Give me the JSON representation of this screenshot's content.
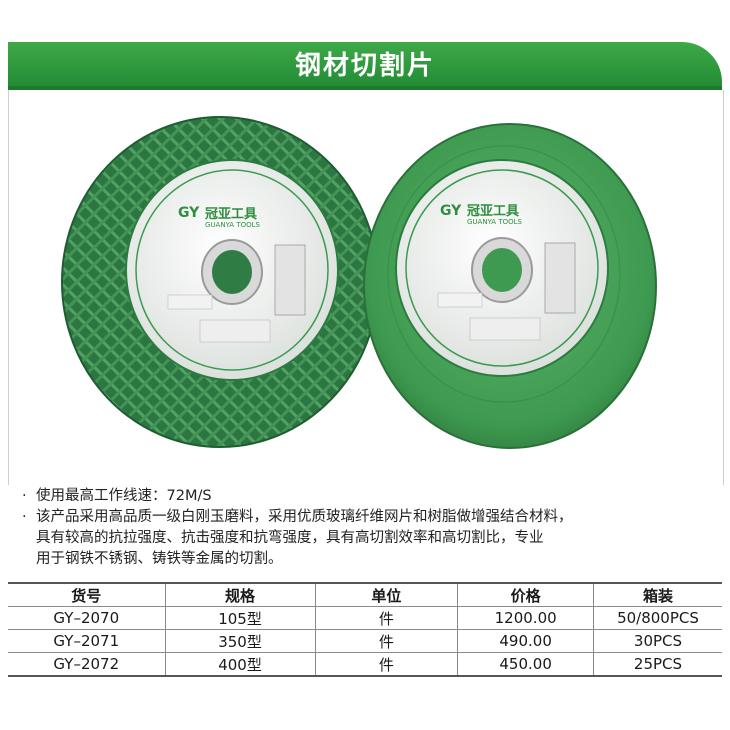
{
  "header": {
    "title": "钢材切割片"
  },
  "product_label": {
    "brand_logo": "GY",
    "brand_cn": "冠亚工具",
    "brand_en": "GUANYA TOOLS"
  },
  "description": {
    "lines": [
      "使用最高工作线速：72M/S",
      "该产品采用高品质一级白刚玉磨料，采用优质玻璃纤维网片和树脂做增强结合材料，",
      "具有较高的抗拉强度、抗击强度和抗弯强度，具有高切割效率和高切割比，专业",
      "用于钢铁不锈钢、铸铁等金属的切割。"
    ],
    "bullet": "·"
  },
  "table": {
    "headers": [
      "货号",
      "规格",
      "单位",
      "价格",
      "箱装"
    ],
    "rows": [
      [
        "GY–2070",
        "105型",
        "件",
        "1200.00",
        "50/800PCS"
      ],
      [
        "GY–2071",
        "350型",
        "件",
        "490.00",
        "30PCS"
      ],
      [
        "GY–2072",
        "400型",
        "件",
        "450.00",
        "25PCS"
      ]
    ]
  },
  "colors": {
    "banner_green": "#2f9a3e",
    "disc_green": "#3e9a50",
    "disc_dark": "#2c6e3f"
  }
}
